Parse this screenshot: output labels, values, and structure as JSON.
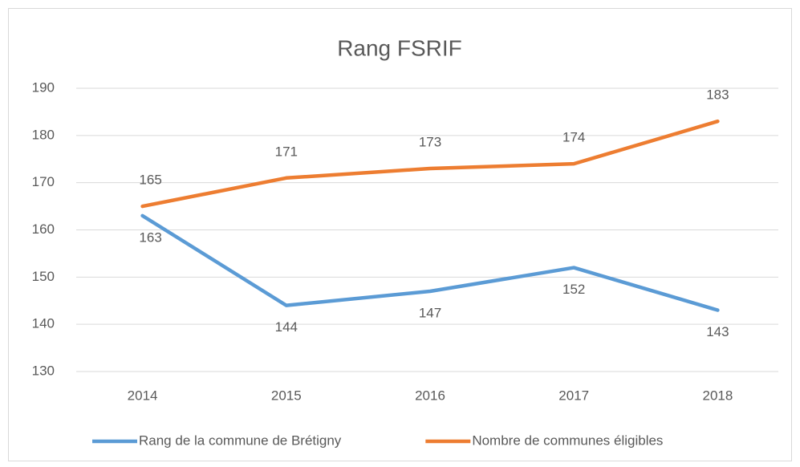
{
  "chart_data": {
    "type": "line",
    "title": "Rang FSRIF",
    "categories": [
      "2014",
      "2015",
      "2016",
      "2017",
      "2018"
    ],
    "series": [
      {
        "name": "Rang de la commune de Brétigny",
        "color": "#5b9bd5",
        "values": [
          163,
          144,
          147,
          152,
          143
        ]
      },
      {
        "name": "Nombre de communes éligibles",
        "color": "#ed7d31",
        "values": [
          165,
          171,
          173,
          174,
          183
        ]
      }
    ],
    "ylim": [
      130,
      190
    ],
    "yticks": [
      130,
      140,
      150,
      160,
      170,
      180,
      190
    ],
    "grid": true,
    "legend": "bottom"
  }
}
